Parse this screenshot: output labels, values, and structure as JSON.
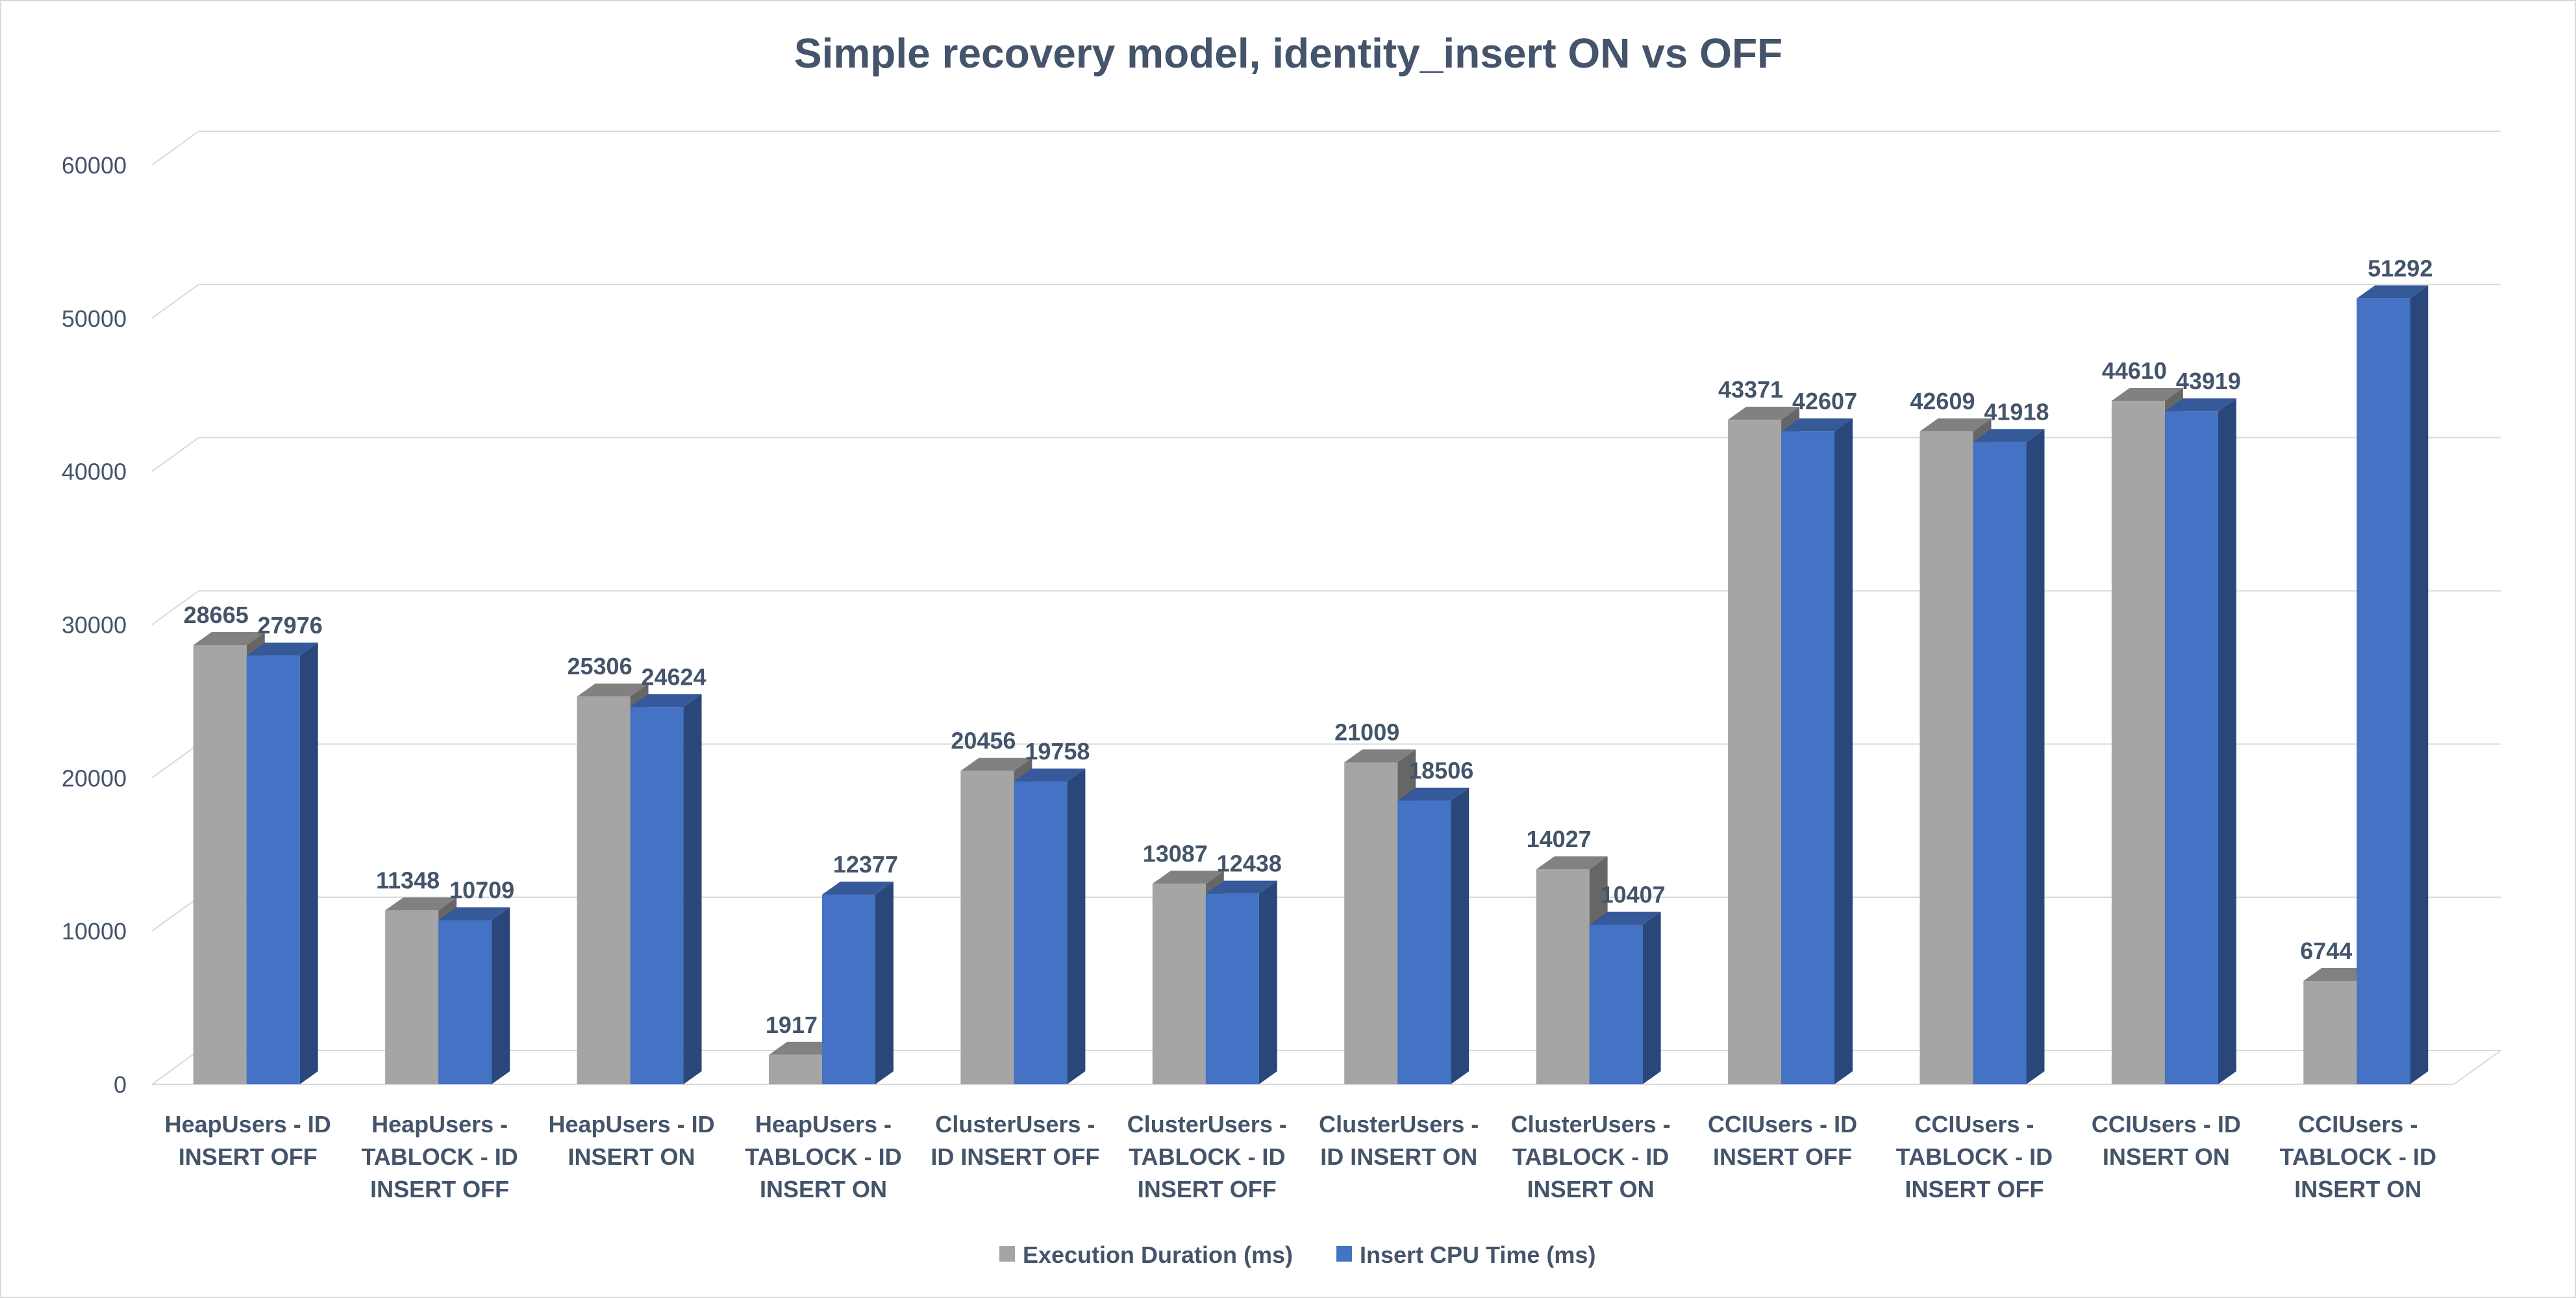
{
  "chart_data": {
    "type": "bar",
    "title": "Simple recovery model, identity_insert ON vs OFF",
    "xlabel": "",
    "ylabel": "",
    "ylim": [
      0,
      60000
    ],
    "yticks": [
      0,
      10000,
      20000,
      30000,
      40000,
      50000,
      60000
    ],
    "grid": true,
    "legend_position": "bottom",
    "style": "3d-clustered-column",
    "categories": [
      [
        "HeapUsers  - ID",
        "INSERT OFF"
      ],
      [
        "HeapUsers -",
        "TABLOCK - ID",
        "INSERT OFF"
      ],
      [
        "HeapUsers  - ID",
        "INSERT ON"
      ],
      [
        "HeapUsers -",
        "TABLOCK - ID",
        "INSERT ON"
      ],
      [
        "ClusterUsers  -",
        "ID INSERT OFF"
      ],
      [
        "ClusterUsers -",
        "TABLOCK - ID",
        "INSERT OFF"
      ],
      [
        "ClusterUsers  -",
        "ID INSERT ON"
      ],
      [
        "ClusterUsers -",
        "TABLOCK - ID",
        "INSERT ON"
      ],
      [
        "CCIUsers  - ID",
        "INSERT OFF"
      ],
      [
        "CCIUsers -",
        "TABLOCK - ID",
        "INSERT OFF"
      ],
      [
        "CCIUsers  - ID",
        "INSERT ON"
      ],
      [
        "CCIUsers -",
        "TABLOCK - ID",
        "INSERT ON"
      ]
    ],
    "series": [
      {
        "name": "Execution Duration (ms)",
        "color": "#a5a5a5",
        "values": [
          28665,
          11348,
          25306,
          1917,
          20456,
          13087,
          21009,
          14027,
          43371,
          42609,
          44610,
          6744
        ]
      },
      {
        "name": "Insert CPU Time (ms)",
        "color": "#4472c4",
        "values": [
          27976,
          10709,
          24624,
          12377,
          19758,
          12438,
          18506,
          10407,
          42607,
          41918,
          43919,
          51292
        ]
      }
    ]
  }
}
